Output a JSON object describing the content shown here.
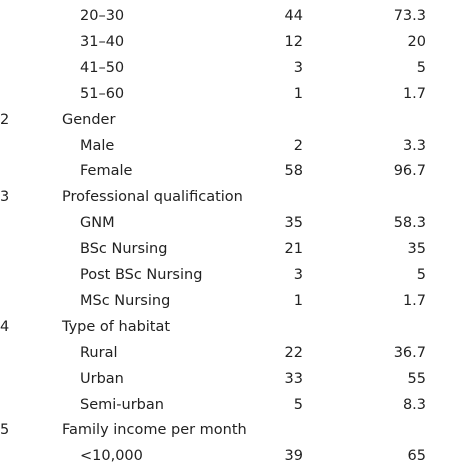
{
  "table": {
    "rows": [
      {
        "label": "20–30",
        "n": 44,
        "pct": 73.3
      },
      {
        "label": "31–40",
        "n": 12,
        "pct": 20
      },
      {
        "label": "41–50",
        "n": 3,
        "pct": 5
      },
      {
        "label": "51–60",
        "n": 1,
        "pct": 1.7
      },
      {
        "no": 2,
        "label": "Gender"
      },
      {
        "label": "Male",
        "n": 2,
        "pct": 3.3
      },
      {
        "label": "Female",
        "n": 58,
        "pct": 96.7
      },
      {
        "no": 3,
        "label": "Professional qualification"
      },
      {
        "label": "GNM",
        "n": 35,
        "pct": 58.3
      },
      {
        "label": "BSc Nursing",
        "n": 21,
        "pct": 35
      },
      {
        "label": "Post BSc Nursing",
        "n": 3,
        "pct": 5
      },
      {
        "label": "MSc Nursing",
        "n": 1,
        "pct": 1.7
      },
      {
        "no": 4,
        "label": "Type of habitat"
      },
      {
        "label": "Rural",
        "n": 22,
        "pct": 36.7
      },
      {
        "label": "Urban",
        "n": 33,
        "pct": 55
      },
      {
        "label": "Semi-urban",
        "n": 5,
        "pct": 8.3
      },
      {
        "no": 5,
        "label": "Family income per month"
      },
      {
        "label": "<10,000",
        "n": 39,
        "pct": 65
      }
    ]
  }
}
